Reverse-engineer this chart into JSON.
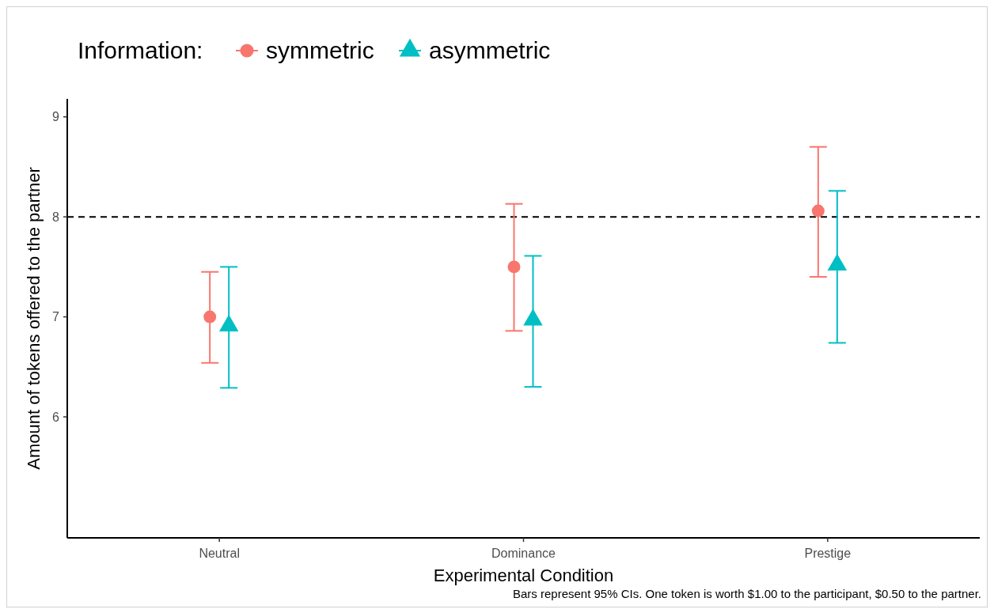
{
  "chart_data": {
    "type": "scatter",
    "xlabel": "Experimental Condition",
    "ylabel": "Amount of tokens offered to the partner",
    "legend_title": "Information:",
    "legend": "top",
    "grid": false,
    "categories": [
      "Neutral",
      "Dominance",
      "Prestige"
    ],
    "ylim": [
      4.79,
      9.18
    ],
    "yticks": [
      6,
      7,
      8,
      9
    ],
    "series": [
      {
        "name": "symmetric",
        "color": "#f8766d",
        "marker": "circle",
        "values": [
          7.0,
          7.5,
          8.06
        ],
        "errors": [
          [
            6.54,
            7.45
          ],
          [
            6.86,
            8.13
          ],
          [
            7.4,
            8.7
          ]
        ]
      },
      {
        "name": "asymmetric",
        "color": "#00bfc4",
        "marker": "triangle",
        "values": [
          6.91,
          6.97,
          7.52
        ],
        "errors": [
          [
            6.29,
            7.5
          ],
          [
            6.3,
            7.61
          ],
          [
            6.74,
            8.26
          ]
        ]
      }
    ],
    "ref_lines": [
      {
        "axis": "y",
        "value": 8,
        "line_style": "dashed",
        "color": "#000000"
      }
    ],
    "annotations": [
      "Bars represent 95% CIs. One token is worth $1.00 to the participant, $0.50 to the partner."
    ]
  }
}
